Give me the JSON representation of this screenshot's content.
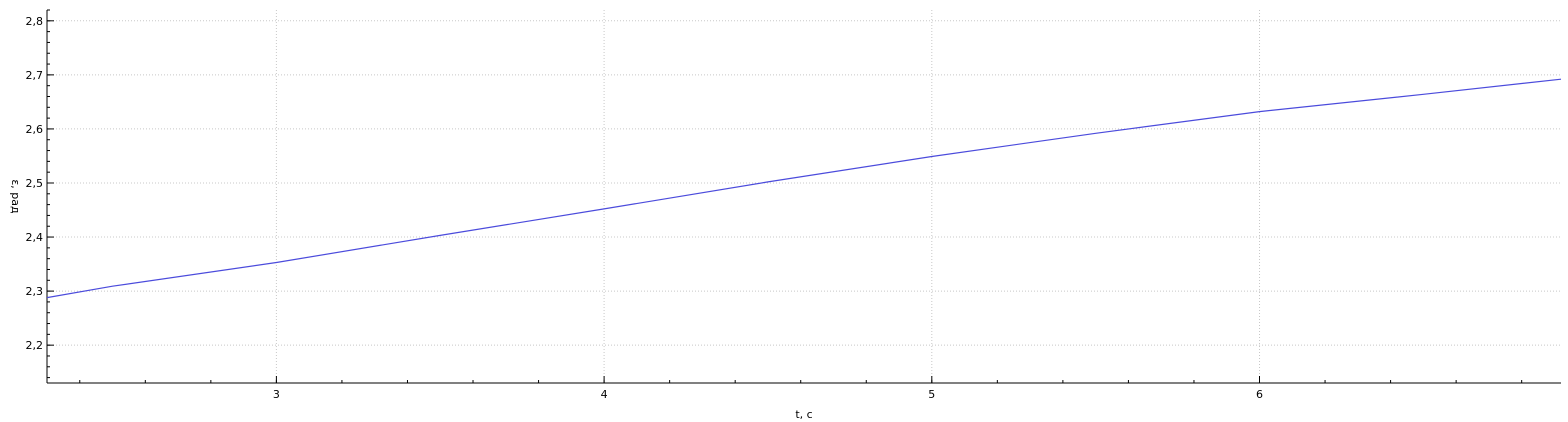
{
  "chart_data": {
    "type": "line",
    "title": "",
    "xlabel": "t, c",
    "ylabel": "ε, рад",
    "xlim": [
      2.3,
      6.92
    ],
    "ylim": [
      2.13,
      2.82
    ],
    "x_ticks": [
      3,
      4,
      5,
      6
    ],
    "x_tick_labels": [
      "3",
      "4",
      "5",
      "6"
    ],
    "y_ticks": [
      2.2,
      2.3,
      2.4,
      2.5,
      2.6,
      2.7,
      2.8
    ],
    "y_tick_labels": [
      "2,2",
      "2,3",
      "2,4",
      "2,5",
      "2,6",
      "2,7",
      "2,8"
    ],
    "grid": true,
    "legend": "none",
    "series": [
      {
        "color": "#4b4bdc",
        "x": [
          2.3,
          2.5,
          3.0,
          3.5,
          4.0,
          4.5,
          5.0,
          5.5,
          6.0,
          6.5,
          6.92
        ],
        "y": [
          2.288,
          2.309,
          2.353,
          2.403,
          2.452,
          2.502,
          2.549,
          2.592,
          2.632,
          2.664,
          2.692
        ]
      }
    ]
  }
}
